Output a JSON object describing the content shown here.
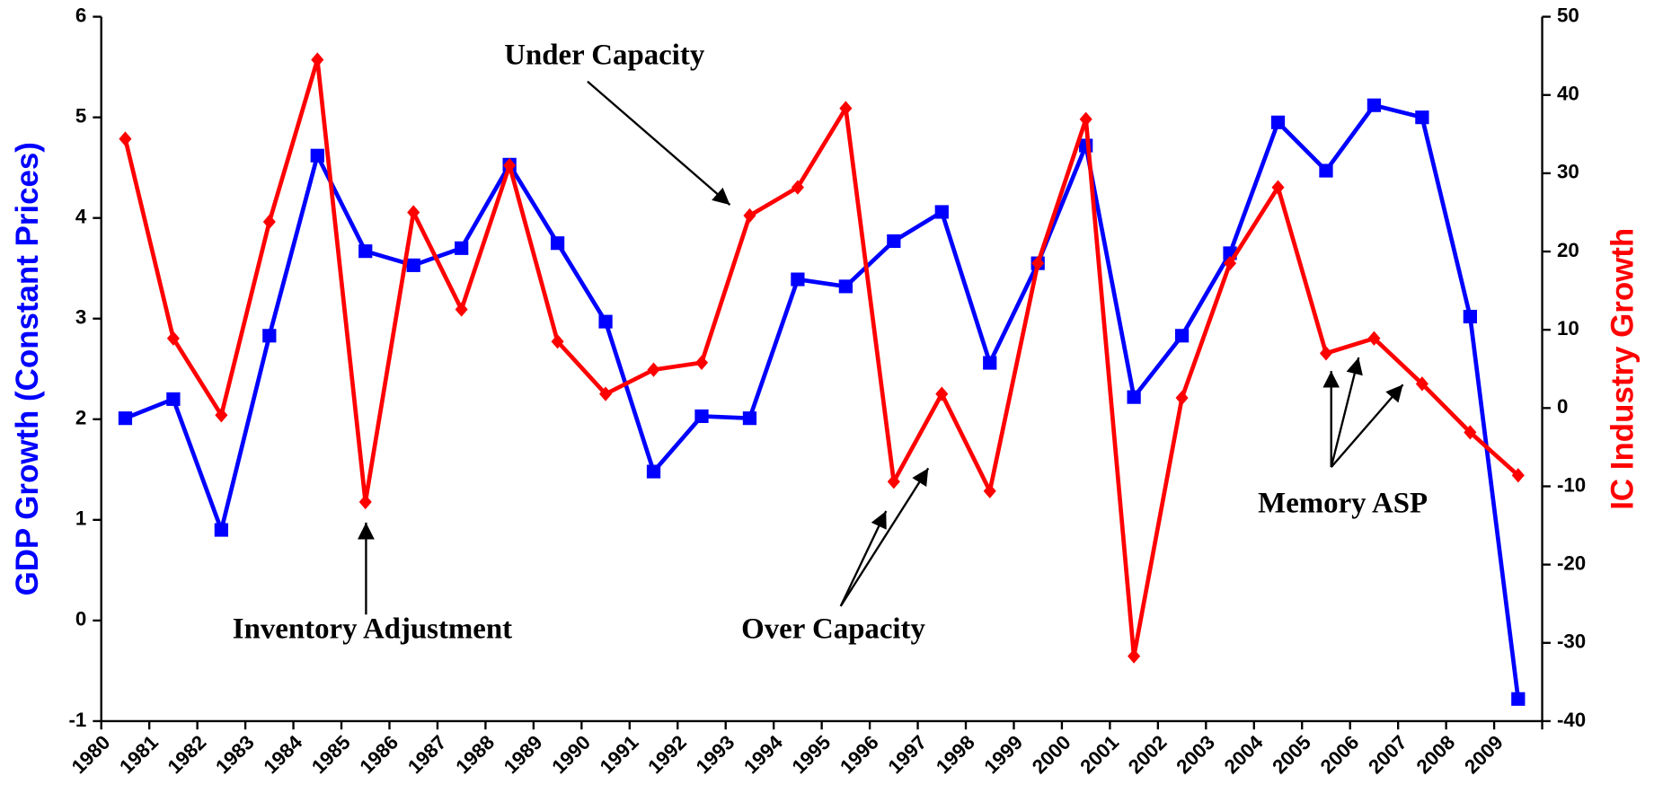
{
  "chart_data": {
    "type": "line",
    "categories": [
      "1980",
      "1981",
      "1982",
      "1983",
      "1984",
      "1985",
      "1986",
      "1987",
      "1988",
      "1989",
      "1990",
      "1991",
      "1992",
      "1993",
      "1994",
      "1995",
      "1996",
      "1997",
      "1998",
      "1999",
      "2000",
      "2001",
      "2002",
      "2003",
      "2004",
      "2005",
      "2006",
      "2007",
      "2008",
      "2009"
    ],
    "series": [
      {
        "name": "GDP Growth (Constant Prices)",
        "color": "#0000ff",
        "marker": "square",
        "values": [
          2.01,
          2.2,
          0.9,
          2.83,
          4.62,
          3.67,
          3.53,
          3.7,
          4.53,
          3.75,
          2.97,
          1.48,
          2.03,
          2.01,
          3.39,
          3.32,
          3.77,
          4.06,
          2.56,
          3.55,
          4.72,
          2.22,
          2.83,
          3.65,
          4.95,
          4.47,
          5.12,
          5.0,
          3.02,
          -0.78
        ]
      },
      {
        "name": "IC Industry Growth",
        "color": "#ff0000",
        "marker": "diamond",
        "axis": "y2",
        "values": [
          34.4,
          8.9,
          -0.9,
          23.8,
          44.5,
          -12,
          25,
          12.6,
          31,
          8.5,
          1.8,
          4.9,
          5.8,
          24.6,
          28.2,
          38.3,
          -9.4,
          1.8,
          -10.6,
          18.5,
          36.9,
          -31.7,
          1.3,
          18.5,
          28.2,
          7,
          8.9,
          3.1,
          -3.1,
          -8.6
        ]
      }
    ],
    "ylabel": "GDP Growth (Constant Prices)",
    "y2label": "IC Industry Growth",
    "ylim": [
      -1,
      6
    ],
    "yticks": [
      -1,
      0,
      1,
      2,
      3,
      4,
      5,
      6
    ],
    "y2lim": [
      -40,
      50
    ],
    "y2ticks": [
      -40,
      -30,
      -20,
      -10,
      0,
      10,
      20,
      30,
      40,
      50
    ],
    "annotations": [
      "Under Capacity",
      "Inventory Adjustment",
      "Over Capacity",
      "Memory ASP"
    ],
    "grid": false
  }
}
